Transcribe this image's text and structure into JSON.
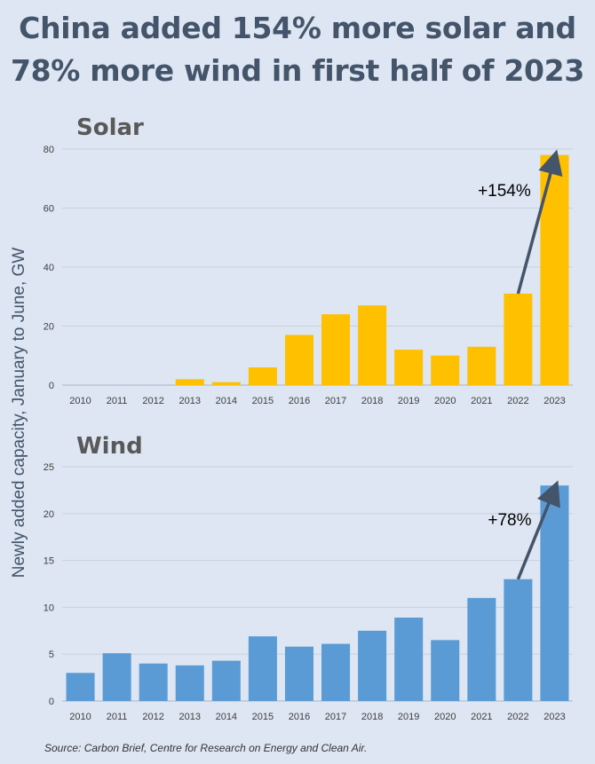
{
  "title": {
    "line1": "China added 154% more solar and",
    "line2": "78% more wind in first half of 2023"
  },
  "y_axis_label": "Newly added capacity, January to June, GW",
  "source": "Source: Carbon Brief, Centre for Research on Energy and Clean Air.",
  "colors": {
    "solar": "#ffc000",
    "wind": "#5b9bd5",
    "arrow": "#44546a",
    "grid": "#c8d0dc"
  },
  "chart_data": [
    {
      "type": "bar",
      "title": "Solar",
      "categories": [
        "2010",
        "2011",
        "2012",
        "2013",
        "2014",
        "2015",
        "2016",
        "2017",
        "2018",
        "2019",
        "2020",
        "2021",
        "2022",
        "2023"
      ],
      "values": [
        0,
        0,
        0,
        2,
        1,
        6,
        17,
        24,
        27,
        12,
        10,
        13,
        31,
        78
      ],
      "ylim": [
        0,
        80
      ],
      "yticks": [
        0,
        20,
        40,
        60,
        80
      ],
      "annotation": {
        "text": "+154%",
        "from": "2022",
        "to": "2023"
      }
    },
    {
      "type": "bar",
      "title": "Wind",
      "categories": [
        "2010",
        "2011",
        "2012",
        "2013",
        "2014",
        "2015",
        "2016",
        "2017",
        "2018",
        "2019",
        "2020",
        "2021",
        "2022",
        "2023"
      ],
      "values": [
        3,
        5.1,
        4,
        3.8,
        4.3,
        6.9,
        5.8,
        6.1,
        7.5,
        8.9,
        6.5,
        11,
        13,
        23
      ],
      "ylim": [
        0,
        25
      ],
      "yticks": [
        0,
        5,
        10,
        15,
        20,
        25
      ],
      "annotation": {
        "text": "+78%",
        "from": "2022",
        "to": "2023"
      }
    }
  ]
}
